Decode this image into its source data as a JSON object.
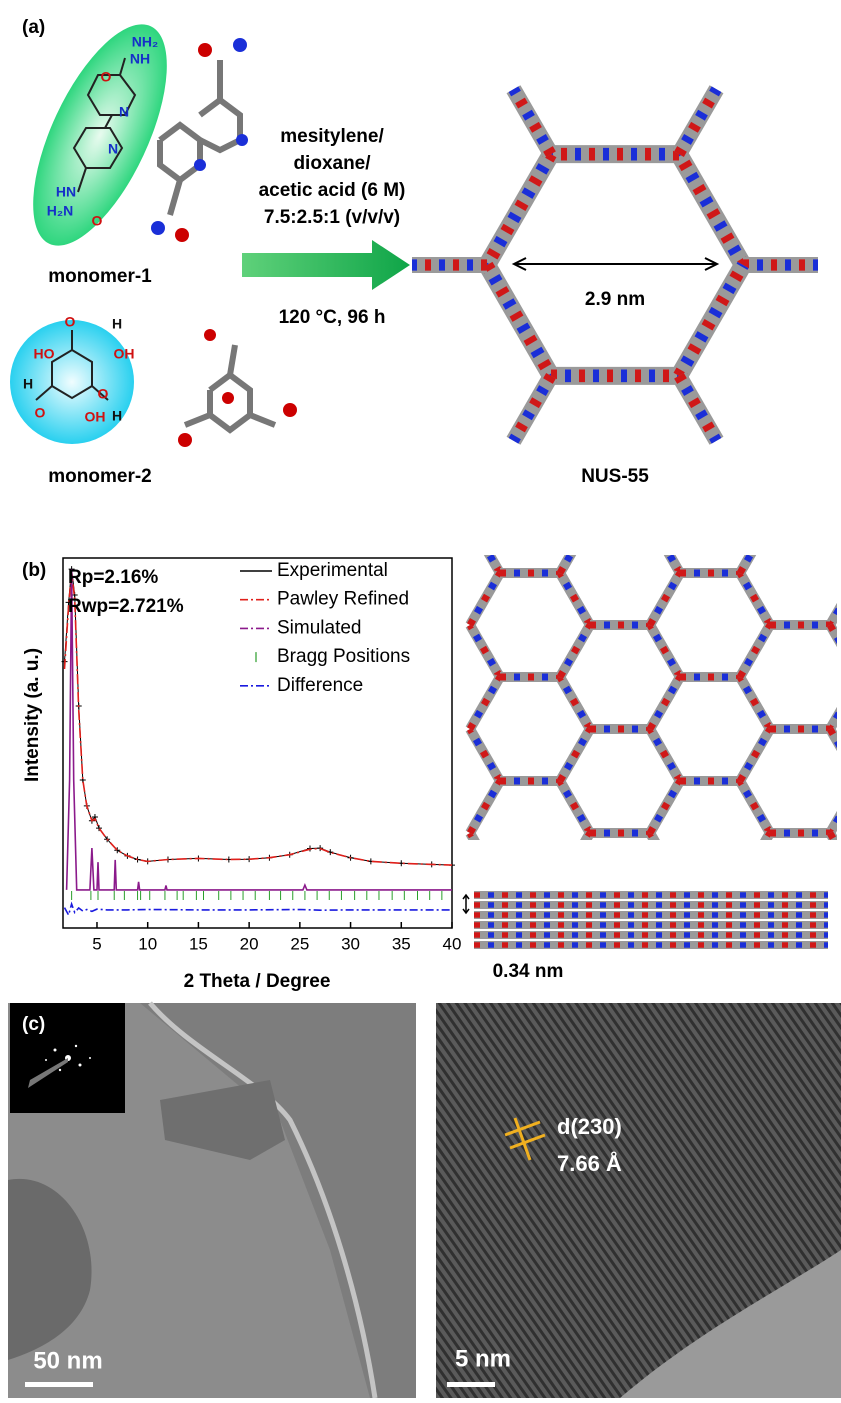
{
  "panel_a": {
    "label": "(a)",
    "monomer1": {
      "name": "monomer-1",
      "atoms": [
        "NH₂",
        "NH",
        "O",
        "N",
        "N",
        "HN",
        "H₂N",
        "O"
      ]
    },
    "monomer2": {
      "name": "monomer-2",
      "atoms": [
        "O",
        "H",
        "HO",
        "OH",
        "H",
        "O",
        "OH",
        "O",
        "H"
      ]
    },
    "conditions": [
      "mesitylene/",
      "dioxane/",
      "acetic acid (6 M)",
      "7.5:2.5:1 (v/v/v)"
    ],
    "temperature": "120 °C, 96 h",
    "pore_size": "2.9 nm",
    "product": "NUS-55"
  },
  "chart_data": {
    "type": "line",
    "label": "(b)",
    "y_label": "Intensity (a. u.)",
    "x_label": "2 Theta / Degree",
    "annotations": [
      "Rp=2.16%",
      "Rwp=2.721%"
    ],
    "xlim": [
      1.65,
      40
    ],
    "xticks": [
      5,
      10,
      15,
      20,
      25,
      30,
      35,
      40
    ],
    "ylim": [
      0,
      100
    ],
    "series": [
      {
        "name": "Experimental",
        "color": "#000000",
        "x": [
          1.8,
          2.2,
          2.5,
          2.8,
          3.2,
          3.6,
          4.0,
          4.5,
          4.8,
          5.2,
          6,
          7,
          8,
          9,
          10,
          12,
          15,
          18,
          20,
          22,
          24,
          26,
          27,
          28,
          30,
          32,
          35,
          38,
          40
        ],
        "values": [
          72,
          88,
          97,
          90,
          60,
          40,
          33,
          29,
          30,
          27,
          24,
          21,
          19.5,
          18.5,
          18,
          18.5,
          18.8,
          18.5,
          18.6,
          19,
          19.8,
          21.5,
          21.6,
          20.5,
          19,
          18,
          17.5,
          17.2,
          17
        ]
      },
      {
        "name": "Pawley Refined",
        "color": "#e0201b",
        "x": [
          1.8,
          2.2,
          2.5,
          2.8,
          3.2,
          3.6,
          4.0,
          4.5,
          4.8,
          5.2,
          6,
          7,
          8,
          9,
          10,
          12,
          15,
          18,
          20,
          22,
          24,
          26,
          27,
          28,
          30,
          32,
          35,
          38,
          40
        ],
        "values": [
          70,
          87,
          96,
          89,
          59,
          40,
          33,
          29,
          29.5,
          27,
          24,
          21,
          19.5,
          18.5,
          18,
          18.5,
          18.8,
          18.5,
          18.6,
          19,
          19.8,
          21.3,
          21.5,
          20.4,
          19,
          18,
          17.5,
          17.2,
          17
        ]
      },
      {
        "name": "Simulated",
        "color": "#8b1a8b",
        "x": [
          2.0,
          2.3,
          2.5,
          2.7,
          3.0,
          4.3,
          4.5,
          4.7,
          5.0,
          5.1,
          5.2,
          6.7,
          6.8,
          6.9,
          9.0,
          9.1,
          9.2,
          11.7,
          11.8,
          11.9,
          25.3,
          25.5,
          25.7,
          40
        ],
        "values": [
          10.3,
          40,
          97,
          40,
          10.3,
          10.3,
          21.6,
          10.3,
          10.3,
          17.8,
          10.3,
          10.3,
          18.4,
          10.3,
          10.3,
          12.5,
          10.3,
          10.3,
          11.5,
          10.3,
          10.3,
          11.6,
          10.3,
          10.3
        ]
      },
      {
        "name": "Bragg Positions",
        "color": "#2a9d2a",
        "x": [
          2.5,
          4.4,
          5.1,
          6.7,
          7.7,
          9.0,
          9.3,
          10.2,
          11.7,
          12.9,
          13.5,
          14.8,
          15.5,
          17.0,
          18.2,
          19.4,
          20.6,
          22.0,
          23.1,
          24.3,
          25.5,
          26.7,
          27.9,
          29.1,
          30.4,
          31.6,
          32.8,
          34.1,
          35.3,
          36.6,
          37.8,
          39.0
        ]
      },
      {
        "name": "Difference",
        "color": "#1a1adf",
        "x": [
          1.8,
          2.2,
          2.5,
          2.8,
          3.2,
          3.6,
          4.0,
          4.5,
          5.0,
          6,
          8,
          10,
          15,
          20,
          25,
          27,
          30,
          35,
          40
        ],
        "values": [
          5.5,
          3.5,
          6.5,
          4.2,
          5.4,
          4.6,
          5.0,
          4.5,
          5.1,
          4.9,
          4.9,
          5.0,
          4.9,
          4.9,
          5.0,
          4.8,
          4.9,
          4.9,
          4.9
        ]
      }
    ]
  },
  "panel_b_extra": {
    "layer_spacing": "0.34 nm"
  },
  "panel_c": {
    "label": "(c)",
    "scale_left": "50 nm",
    "scale_right": "5 nm",
    "plane": "d(230)",
    "spacing": "7.66 Å"
  }
}
